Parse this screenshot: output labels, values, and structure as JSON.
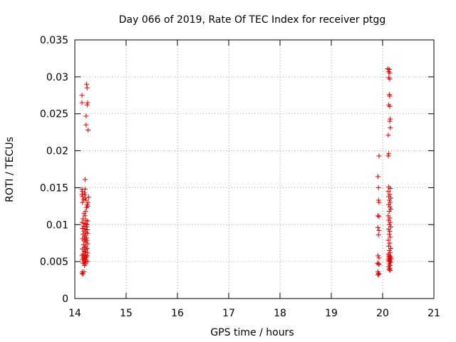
{
  "chart_data": {
    "type": "scatter",
    "title": "Day 066 of 2019, Rate Of TEC Index for receiver ptgg",
    "xlabel": "GPS time / hours",
    "ylabel": "ROTI / TECUs",
    "xlim": [
      14,
      21
    ],
    "ylim": [
      0,
      0.035
    ],
    "xticks": [
      "14",
      "15",
      "16",
      "17",
      "18",
      "19",
      "20",
      "21"
    ],
    "yticks": [
      "0",
      "0.005",
      "0.01",
      "0.015",
      "0.02",
      "0.025",
      "0.03",
      "0.035"
    ],
    "grid": true,
    "marker": "+",
    "color": "#e00000",
    "series": [
      {
        "name": "ROTI",
        "points": [
          [
            14.14,
            0.0275
          ],
          [
            14.14,
            0.0265
          ],
          [
            14.23,
            0.029
          ],
          [
            14.24,
            0.0285
          ],
          [
            14.25,
            0.0265
          ],
          [
            14.24,
            0.0262
          ],
          [
            14.22,
            0.0247
          ],
          [
            14.22,
            0.0235
          ],
          [
            14.26,
            0.0228
          ],
          [
            14.2,
            0.0161
          ],
          [
            14.14,
            0.0148
          ],
          [
            14.2,
            0.0148
          ],
          [
            14.15,
            0.0145
          ],
          [
            14.19,
            0.0143
          ],
          [
            14.14,
            0.0141
          ],
          [
            14.2,
            0.014
          ],
          [
            14.15,
            0.0138
          ],
          [
            14.2,
            0.0136
          ],
          [
            14.27,
            0.0137
          ],
          [
            14.17,
            0.0134
          ],
          [
            14.22,
            0.0133
          ],
          [
            14.15,
            0.013
          ],
          [
            14.26,
            0.013
          ],
          [
            14.24,
            0.0127
          ],
          [
            14.25,
            0.0125
          ],
          [
            14.23,
            0.0123
          ],
          [
            14.21,
            0.0118
          ],
          [
            14.18,
            0.0115
          ],
          [
            14.2,
            0.0112
          ],
          [
            14.16,
            0.0108
          ],
          [
            14.22,
            0.0106
          ],
          [
            14.25,
            0.0105
          ],
          [
            14.14,
            0.0103
          ],
          [
            14.18,
            0.0102
          ],
          [
            14.21,
            0.0101
          ],
          [
            14.24,
            0.01
          ],
          [
            14.17,
            0.0098
          ],
          [
            14.23,
            0.0097
          ],
          [
            14.15,
            0.0095
          ],
          [
            14.2,
            0.0094
          ],
          [
            14.24,
            0.0093
          ],
          [
            14.18,
            0.0091
          ],
          [
            14.22,
            0.0089
          ],
          [
            14.16,
            0.0087
          ],
          [
            14.25,
            0.0088
          ],
          [
            14.2,
            0.0085
          ],
          [
            14.19,
            0.0083
          ],
          [
            14.23,
            0.0082
          ],
          [
            14.15,
            0.0081
          ],
          [
            14.2,
            0.008
          ],
          [
            14.24,
            0.0079
          ],
          [
            14.18,
            0.0078
          ],
          [
            14.22,
            0.0076
          ],
          [
            14.25,
            0.0074
          ],
          [
            14.17,
            0.0073
          ],
          [
            14.21,
            0.0071
          ],
          [
            14.19,
            0.0069
          ],
          [
            14.24,
            0.0068
          ],
          [
            14.15,
            0.0067
          ],
          [
            14.22,
            0.0066
          ],
          [
            14.18,
            0.0064
          ],
          [
            14.2,
            0.0063
          ],
          [
            14.25,
            0.0062
          ],
          [
            14.16,
            0.006
          ],
          [
            14.21,
            0.0059
          ],
          [
            14.14,
            0.0058
          ],
          [
            14.24,
            0.0058
          ],
          [
            14.19,
            0.0057
          ],
          [
            14.23,
            0.0056
          ],
          [
            14.17,
            0.0055
          ],
          [
            14.2,
            0.0054
          ],
          [
            14.15,
            0.0053
          ],
          [
            14.22,
            0.0052
          ],
          [
            14.18,
            0.0051
          ],
          [
            14.25,
            0.005
          ],
          [
            14.2,
            0.0049
          ],
          [
            14.16,
            0.0048
          ],
          [
            14.21,
            0.0047
          ],
          [
            14.19,
            0.0045
          ],
          [
            14.15,
            0.0036
          ],
          [
            14.14,
            0.0034
          ],
          [
            14.16,
            0.0033
          ],
          [
            14.18,
            0.0036
          ],
          [
            19.93,
            0.0193
          ],
          [
            19.91,
            0.0165
          ],
          [
            19.92,
            0.015
          ],
          [
            19.92,
            0.0133
          ],
          [
            19.93,
            0.013
          ],
          [
            19.91,
            0.0112
          ],
          [
            19.93,
            0.0111
          ],
          [
            19.91,
            0.0096
          ],
          [
            19.93,
            0.0092
          ],
          [
            19.92,
            0.0086
          ],
          [
            19.91,
            0.0058
          ],
          [
            19.93,
            0.0055
          ],
          [
            19.9,
            0.0048
          ],
          [
            19.92,
            0.0047
          ],
          [
            19.93,
            0.0046
          ],
          [
            19.91,
            0.0036
          ],
          [
            19.92,
            0.0034
          ],
          [
            19.93,
            0.0033
          ],
          [
            19.91,
            0.0032
          ],
          [
            20.1,
            0.0311
          ],
          [
            20.13,
            0.031
          ],
          [
            20.12,
            0.0307
          ],
          [
            20.14,
            0.0305
          ],
          [
            20.12,
            0.0299
          ],
          [
            20.14,
            0.0297
          ],
          [
            20.13,
            0.0276
          ],
          [
            20.14,
            0.0274
          ],
          [
            20.12,
            0.0262
          ],
          [
            20.14,
            0.026
          ],
          [
            20.15,
            0.0243
          ],
          [
            20.14,
            0.024
          ],
          [
            20.15,
            0.0231
          ],
          [
            20.11,
            0.0221
          ],
          [
            20.12,
            0.0196
          ],
          [
            20.11,
            0.0193
          ],
          [
            20.12,
            0.0151
          ],
          [
            20.15,
            0.0149
          ],
          [
            20.11,
            0.0145
          ],
          [
            20.14,
            0.0141
          ],
          [
            20.12,
            0.0138
          ],
          [
            20.16,
            0.0136
          ],
          [
            20.13,
            0.0133
          ],
          [
            20.15,
            0.013
          ],
          [
            20.12,
            0.0127
          ],
          [
            20.14,
            0.0124
          ],
          [
            20.16,
            0.0121
          ],
          [
            20.13,
            0.0118
          ],
          [
            20.11,
            0.0112
          ],
          [
            20.14,
            0.0109
          ],
          [
            20.12,
            0.0106
          ],
          [
            20.15,
            0.0103
          ],
          [
            20.13,
            0.01
          ],
          [
            20.16,
            0.0097
          ],
          [
            20.12,
            0.0094
          ],
          [
            20.14,
            0.0091
          ],
          [
            20.13,
            0.0087
          ],
          [
            20.15,
            0.0083
          ],
          [
            20.11,
            0.0079
          ],
          [
            20.14,
            0.0075
          ],
          [
            20.12,
            0.0071
          ],
          [
            20.16,
            0.0068
          ],
          [
            20.13,
            0.0065
          ],
          [
            20.15,
            0.0062
          ],
          [
            20.11,
            0.006
          ],
          [
            20.14,
            0.0058
          ],
          [
            20.12,
            0.0057
          ],
          [
            20.16,
            0.0056
          ],
          [
            20.13,
            0.0055
          ],
          [
            20.17,
            0.0054
          ],
          [
            20.11,
            0.0053
          ],
          [
            20.15,
            0.0052
          ],
          [
            20.12,
            0.0051
          ],
          [
            20.14,
            0.005
          ],
          [
            20.16,
            0.0049
          ],
          [
            20.13,
            0.0047
          ],
          [
            20.15,
            0.0045
          ],
          [
            20.12,
            0.0043
          ],
          [
            20.14,
            0.0041
          ],
          [
            20.13,
            0.0039
          ],
          [
            20.15,
            0.0038
          ]
        ]
      }
    ]
  }
}
